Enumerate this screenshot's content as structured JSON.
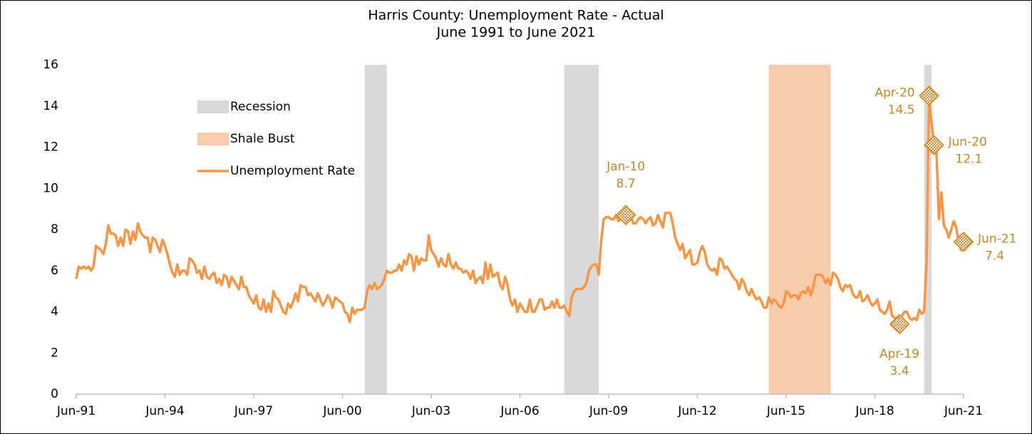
{
  "chart_data": {
    "type": "line",
    "title": "Harris County: Unemployment Rate - Actual",
    "subtitle": "June 1991 to June 2021",
    "xlim": [
      0,
      360
    ],
    "xticks": [
      {
        "value": 0,
        "label": "Jun-91"
      },
      {
        "value": 36,
        "label": "Jun-94"
      },
      {
        "value": 72,
        "label": "Jun-97"
      },
      {
        "value": 108,
        "label": "Jun-00"
      },
      {
        "value": 144,
        "label": "Jun-03"
      },
      {
        "value": 180,
        "label": "Jun-06"
      },
      {
        "value": 216,
        "label": "Jun-09"
      },
      {
        "value": 252,
        "label": "Jun-12"
      },
      {
        "value": 288,
        "label": "Jun-15"
      },
      {
        "value": 324,
        "label": "Jun-18"
      },
      {
        "value": 360,
        "label": "Jun-21"
      }
    ],
    "ylim": [
      0,
      16
    ],
    "yticks": [
      0,
      2,
      4,
      6,
      8,
      10,
      12,
      14,
      16
    ],
    "grid": false,
    "legend": "upper left",
    "bands": [
      {
        "name": "Recession",
        "color": "#d9d9d9",
        "spans": [
          [
            117,
            126
          ],
          [
            198,
            212
          ],
          [
            344,
            347
          ]
        ]
      },
      {
        "name": "Shale Bust",
        "color": "#f8cbad",
        "spans": [
          [
            281,
            306
          ]
        ]
      }
    ],
    "series": [
      {
        "name": "Unemployment Rate",
        "color": "#f79646",
        "values": [
          5.6,
          6.2,
          6.1,
          6.2,
          6.1,
          6.2,
          6.0,
          6.2,
          7.2,
          7.1,
          7.0,
          6.8,
          7.3,
          8.2,
          7.8,
          7.8,
          7.7,
          7.2,
          7.6,
          7.2,
          8.0,
          7.9,
          7.3,
          7.9,
          7.5,
          8.3,
          7.9,
          7.7,
          7.6,
          7.6,
          6.9,
          7.6,
          7.5,
          7.2,
          6.9,
          7.5,
          7.2,
          6.8,
          6.3,
          5.9,
          5.7,
          6.3,
          5.8,
          6.0,
          6.0,
          5.8,
          6.6,
          6.5,
          6.3,
          5.9,
          6.0,
          5.6,
          6.2,
          5.7,
          5.6,
          5.8,
          5.9,
          5.4,
          5.6,
          5.3,
          5.8,
          5.7,
          5.2,
          5.7,
          5.5,
          5.3,
          5.1,
          5.7,
          5.2,
          5.2,
          4.8,
          4.6,
          4.4,
          4.8,
          4.2,
          4.1,
          4.6,
          4.0,
          4.4,
          4.0,
          5.0,
          4.7,
          4.6,
          4.3,
          4.0,
          3.9,
          4.4,
          4.2,
          4.5,
          4.9,
          4.5,
          5.3,
          5.2,
          5.2,
          4.8,
          4.9,
          4.7,
          4.5,
          4.9,
          4.6,
          4.3,
          4.5,
          4.8,
          4.6,
          4.2,
          4.7,
          4.6,
          4.5,
          4.4,
          4.0,
          3.9,
          3.5,
          4.2,
          3.9,
          4.1,
          4.1,
          4.1,
          4.2,
          5.0,
          5.3,
          5.1,
          5.4,
          5.1,
          5.2,
          5.3,
          5.6,
          6.0,
          5.9,
          5.9,
          6.0,
          6.0,
          6.3,
          6.0,
          6.5,
          6.3,
          6.8,
          6.7,
          6.0,
          6.7,
          6.3,
          6.6,
          6.5,
          6.5,
          7.7,
          7.0,
          6.8,
          6.6,
          6.2,
          6.6,
          6.3,
          6.2,
          6.8,
          6.3,
          6.1,
          6.4,
          6.1,
          6.1,
          5.9,
          6.0,
          5.9,
          5.6,
          6.0,
          5.4,
          5.6,
          5.7,
          5.4,
          6.4,
          5.6,
          6.3,
          5.7,
          5.8,
          5.9,
          5.3,
          5.1,
          5.7,
          5.3,
          4.6,
          4.3,
          4.6,
          4.0,
          4.4,
          4.2,
          4.0,
          4.0,
          4.6,
          4.0,
          4.0,
          4.3,
          4.6,
          4.6,
          4.1,
          4.2,
          4.2,
          4.5,
          4.2,
          4.6,
          4.2,
          4.2,
          4.3,
          4.0,
          3.8,
          4.7,
          5.0,
          5.1,
          5.1,
          5.1,
          5.2,
          5.4,
          6.0,
          6.2,
          6.3,
          6.3,
          5.8,
          7.5,
          8.5,
          8.6,
          8.6,
          8.5,
          8.5,
          8.7,
          8.4,
          8.5,
          8.6,
          8.7,
          8.5,
          8.6,
          8.3,
          8.3,
          8.5,
          8.6,
          8.5,
          8.3,
          8.5,
          8.6,
          8.2,
          8.3,
          8.7,
          8.4,
          8.1,
          8.8,
          8.8,
          8.8,
          8.3,
          7.6,
          7.3,
          7.0,
          7.3,
          6.6,
          6.8,
          7.0,
          6.3,
          6.3,
          6.4,
          6.9,
          7.2,
          6.9,
          6.3,
          6.1,
          6.0,
          6.1,
          5.8,
          6.6,
          6.5,
          6.1,
          6.2,
          6.0,
          5.8,
          5.6,
          5.5,
          5.1,
          5.6,
          5.4,
          5.0,
          4.8,
          5.1,
          4.8,
          4.6,
          4.7,
          4.5,
          4.2,
          4.2,
          4.7,
          4.4,
          4.6,
          4.5,
          4.3,
          4.2,
          4.4,
          5.0,
          4.9,
          4.7,
          4.8,
          4.8,
          4.6,
          4.9,
          5.0,
          4.9,
          5.2,
          4.8,
          5.2,
          5.8,
          5.8,
          5.8,
          5.7,
          5.4,
          5.6,
          5.3,
          5.9,
          5.8,
          5.6,
          5.2,
          5.0,
          5.3,
          5.2,
          5.3,
          4.9,
          4.7,
          4.7,
          5.0,
          4.5,
          4.6,
          4.8,
          4.5,
          4.3,
          4.4,
          4.6,
          4.1,
          4.0,
          3.9,
          4.1,
          4.5,
          3.8,
          3.7,
          3.7,
          3.4,
          3.8,
          4.0,
          4.0,
          3.7,
          3.6,
          3.7,
          3.6,
          4.1,
          3.9,
          4.0,
          6.5,
          14.5,
          13.2,
          12.1,
          11.8,
          8.5,
          9.8,
          8.2,
          8.0,
          7.6,
          8.0,
          8.4,
          8.1,
          7.4,
          7.0,
          7.4
        ]
      }
    ],
    "annotations": [
      {
        "index": 223,
        "label": "Jan-10",
        "value": 8.7
      },
      {
        "index": 334,
        "label": "Apr-19",
        "value": 3.4
      },
      {
        "index": 346,
        "label": "Apr-20",
        "value": 14.5
      },
      {
        "index": 348,
        "label": "Jun-20",
        "value": 12.1
      },
      {
        "index": 360,
        "label": "Jun-21",
        "value": 7.4
      }
    ]
  }
}
